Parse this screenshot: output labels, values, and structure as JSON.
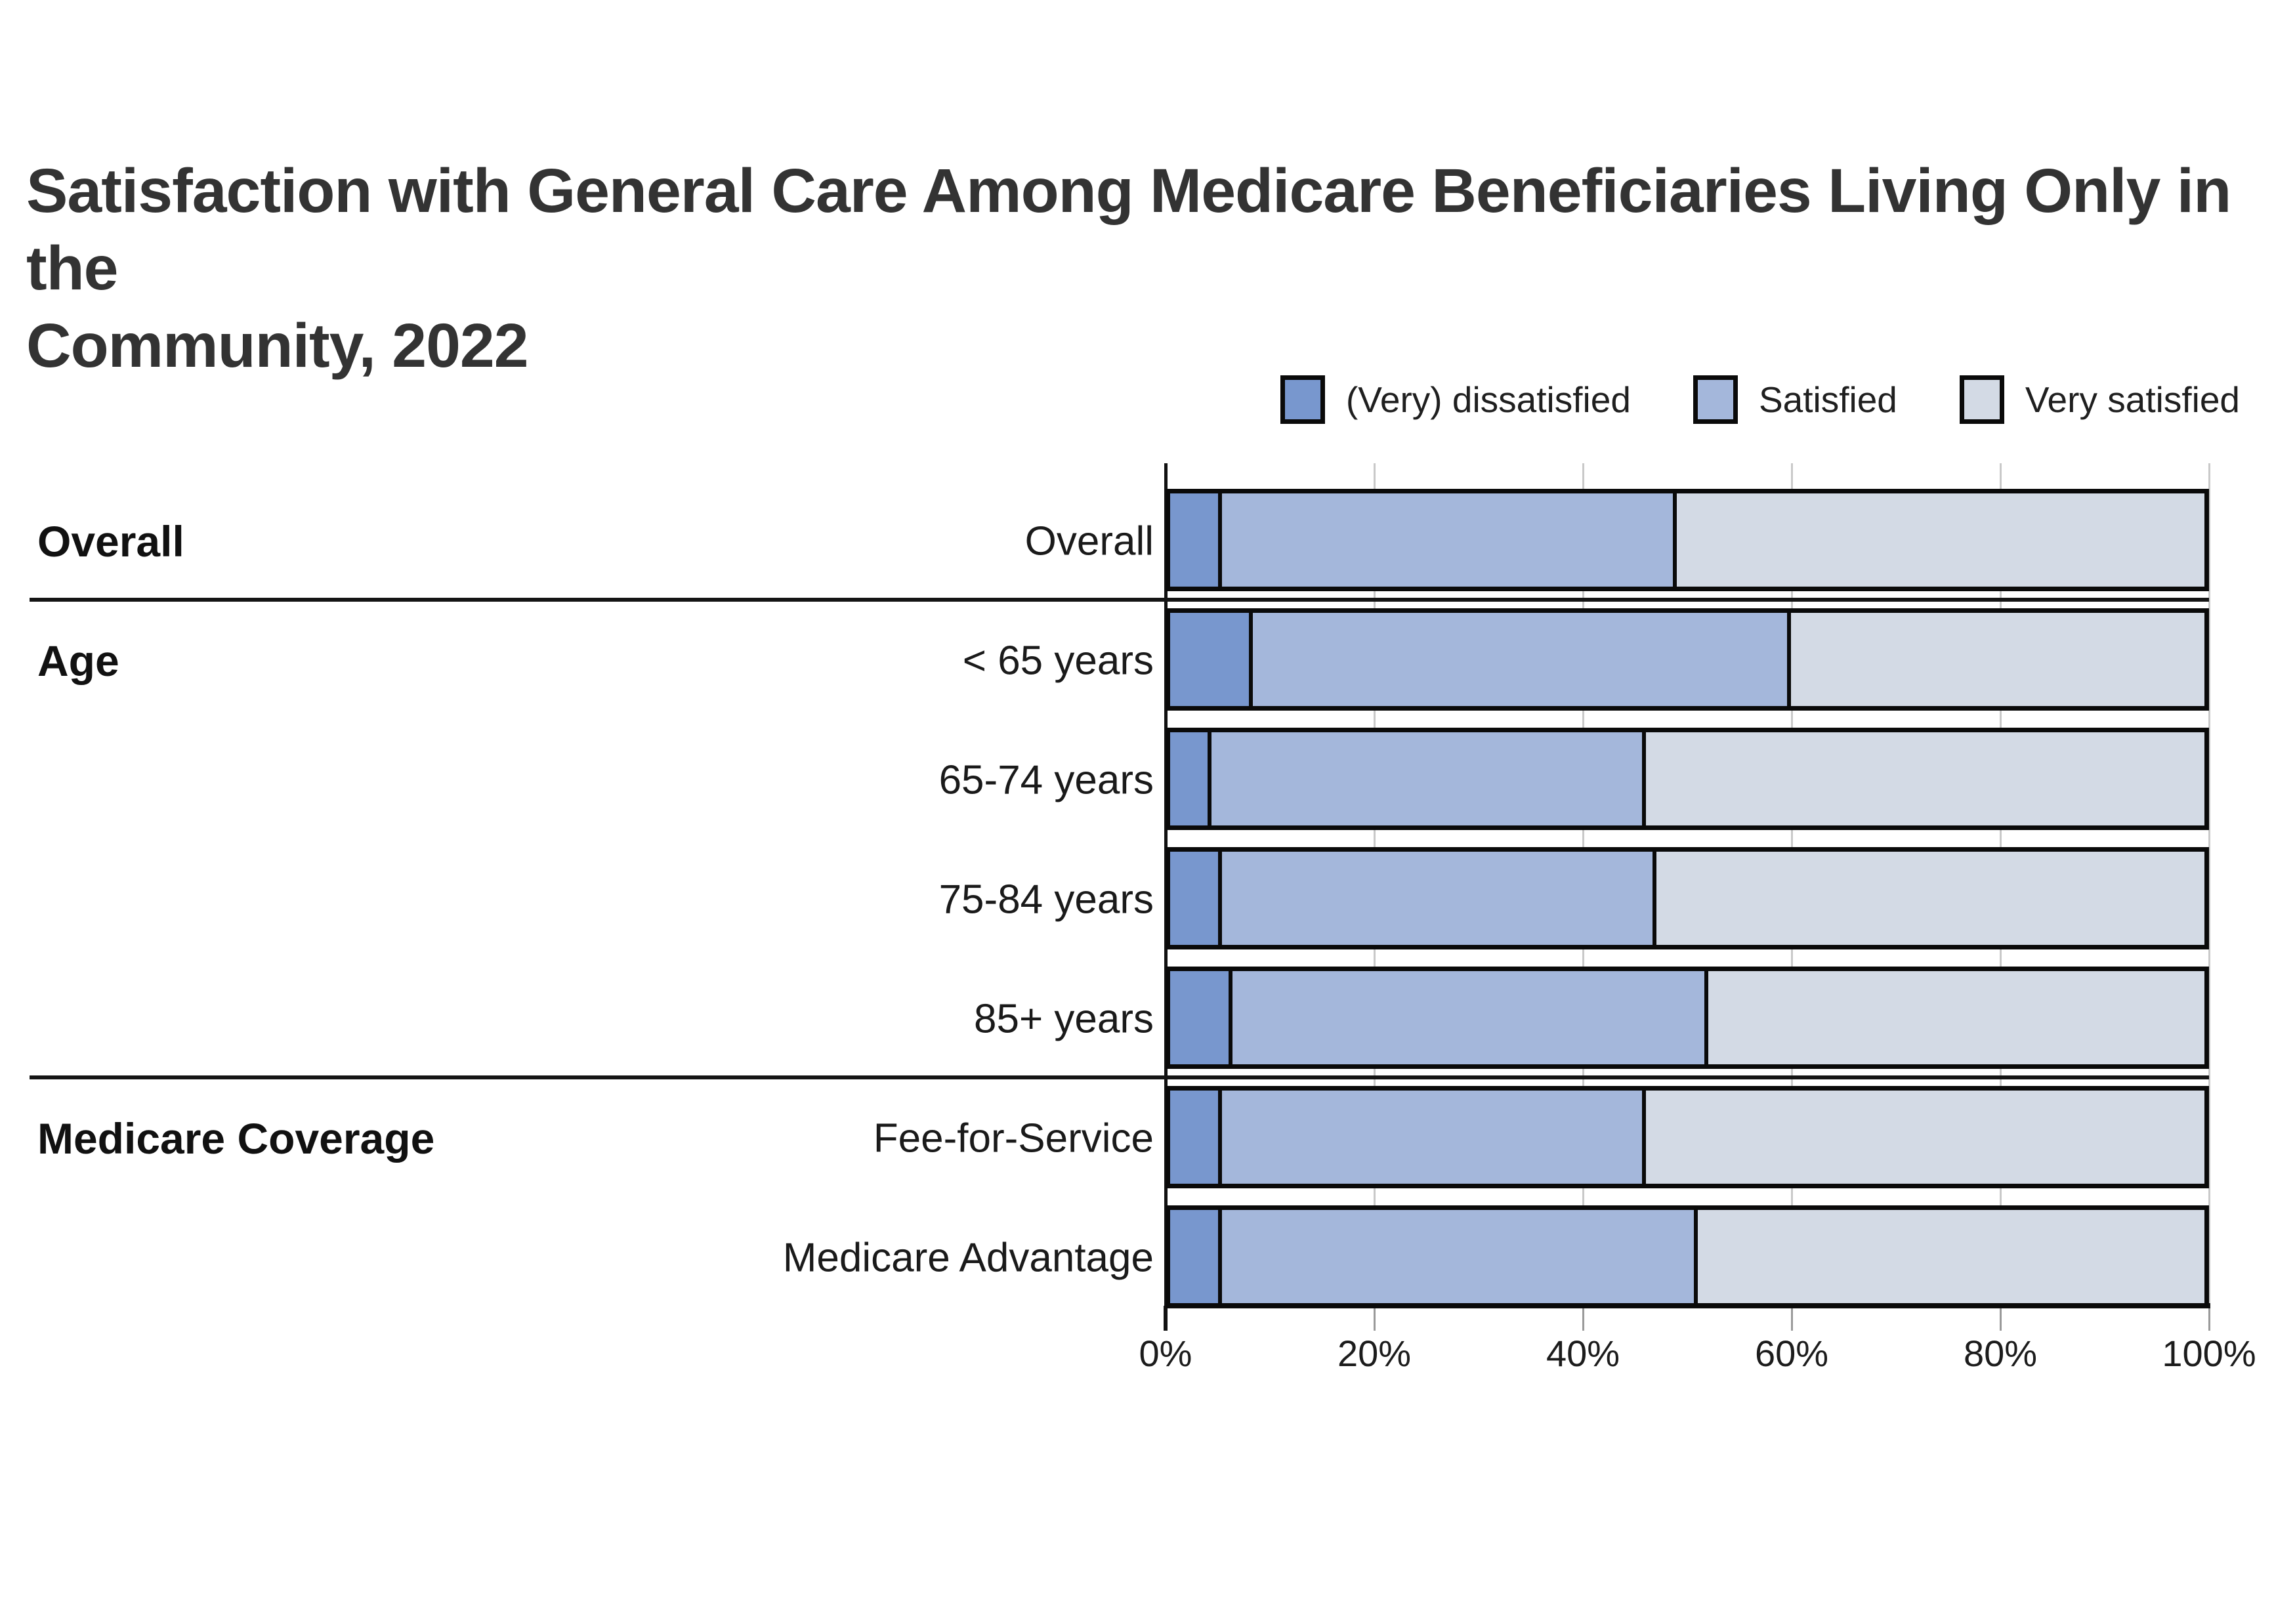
{
  "title": {
    "line1": "Satisfaction with General Care Among Medicare Beneficiaries Living Only in the",
    "line2": "Community, 2022"
  },
  "legend": {
    "items": [
      {
        "label": "(Very) dissatisfied",
        "color": "#7897CE"
      },
      {
        "label": "Satisfied",
        "color": "#A4B7DB"
      },
      {
        "label": "Very satisfied",
        "color": "#D3DAE5"
      }
    ]
  },
  "x_axis": {
    "tick_values": [
      0,
      20,
      40,
      60,
      80,
      100
    ],
    "tick_labels": [
      "0%",
      "20%",
      "40%",
      "60%",
      "80%",
      "100%"
    ]
  },
  "colors": {
    "dissatisfied": "#7897CE",
    "satisfied": "#A4B7DB",
    "very_satisfied": "#D3DAE5",
    "bar_border": "#0a0a0a",
    "gridline": "#c9c9c9",
    "axis": "#111111",
    "title_text": "#333333"
  },
  "chart_data": {
    "type": "bar",
    "orientation": "horizontal",
    "stacked": true,
    "title": "Satisfaction with General Care Among Medicare Beneficiaries Living Only in the Community, 2022",
    "categories": [
      "Overall",
      "< 65 years",
      "65-74 years",
      "75-84 years",
      "85+ years",
      "Fee-for-Service",
      "Medicare Advantage"
    ],
    "groups": [
      {
        "label": "Overall",
        "first_row": 0,
        "last_row": 0
      },
      {
        "label": "Age",
        "first_row": 1,
        "last_row": 4
      },
      {
        "label": "Medicare Coverage",
        "first_row": 5,
        "last_row": 6
      }
    ],
    "series": [
      {
        "name": "(Very) dissatisfied",
        "color": "#7897CE",
        "values": [
          5,
          8,
          4,
          5,
          6,
          5,
          5
        ]
      },
      {
        "name": "Satisfied",
        "color": "#A4B7DB",
        "values": [
          44,
          52,
          42,
          42,
          46,
          41,
          46
        ]
      },
      {
        "name": "Very satisfied",
        "color": "#D3DAE5",
        "values": [
          51,
          40,
          54,
          53,
          48,
          54,
          49
        ]
      }
    ],
    "xlim": [
      0,
      100
    ],
    "x_tick_format": "percent",
    "legend_position": "top-right",
    "grid": "vertical",
    "units": "percent of beneficiaries"
  }
}
